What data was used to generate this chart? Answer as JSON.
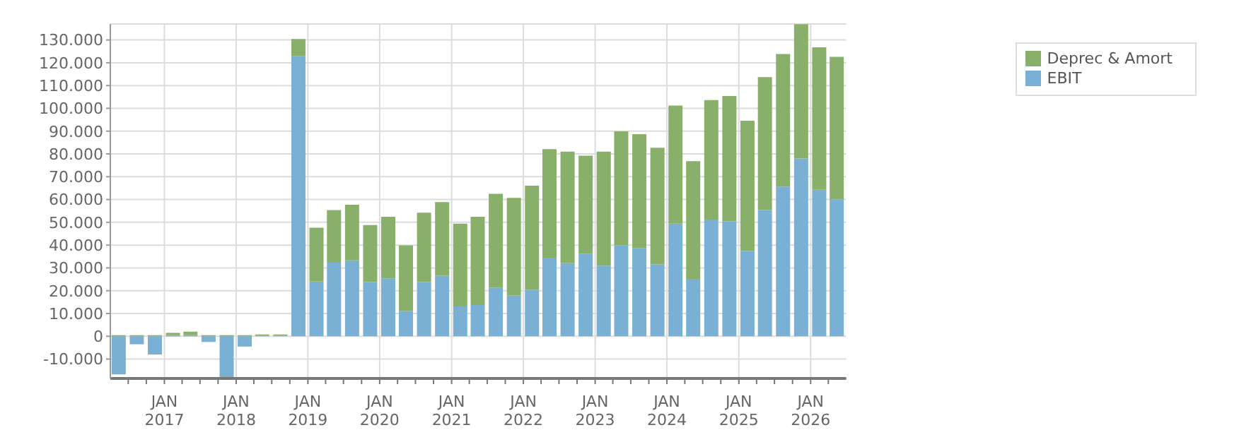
{
  "chart_data": {
    "type": "bar",
    "stacked": true,
    "x": [
      "2016-05-15",
      "2016-08-15",
      "2016-11-15",
      "2017-02-15",
      "2017-05-15",
      "2017-08-15",
      "2017-11-15",
      "2018-02-15",
      "2018-05-15",
      "2018-08-15",
      "2018-11-15",
      "2019-02-15",
      "2019-05-15",
      "2019-08-15",
      "2019-11-15",
      "2020-02-15",
      "2020-05-15",
      "2020-08-15",
      "2020-11-15",
      "2021-02-15",
      "2021-05-15",
      "2021-08-15",
      "2021-11-15",
      "2022-02-15",
      "2022-05-15",
      "2022-08-15",
      "2022-11-15",
      "2023-02-15",
      "2023-05-15",
      "2023-08-15",
      "2023-11-15",
      "2024-02-15",
      "2024-05-15",
      "2024-08-15",
      "2024-11-15",
      "2025-02-15",
      "2025-05-15",
      "2025-08-15",
      "2025-11-15",
      "2026-02-15",
      "2026-05-15"
    ],
    "series": [
      {
        "name": "EBIT",
        "color": "#7ab0d4",
        "values": [
          -16700,
          -3500,
          -8000,
          500,
          500,
          -2500,
          -18500,
          -4500,
          300,
          300,
          123000,
          24000,
          32300,
          33300,
          23800,
          25400,
          11100,
          23800,
          26600,
          13100,
          13700,
          21400,
          17900,
          20400,
          34500,
          32100,
          36100,
          31000,
          39900,
          38700,
          31500,
          49400,
          25200,
          51200,
          50400,
          37500,
          55400,
          65700,
          78000,
          64300,
          60100
        ]
      },
      {
        "name": "Deprec & Amort",
        "color": "#88b06a",
        "values": [
          500,
          500,
          500,
          1000,
          1500,
          500,
          500,
          500,
          500,
          500,
          7400,
          23600,
          23100,
          24400,
          25000,
          27000,
          28800,
          30400,
          32300,
          36300,
          38700,
          41100,
          42800,
          45700,
          47600,
          48900,
          43100,
          50000,
          50000,
          50000,
          51200,
          51800,
          51600,
          52400,
          55000,
          57100,
          58300,
          58100,
          58900,
          62500,
          62500
        ]
      }
    ],
    "xlim": [
      "2016-04-01",
      "2026-07-01"
    ],
    "xticks": [
      {
        "value": "2016-07-01",
        "label": null
      },
      {
        "value": "2016-10-01",
        "label": null
      },
      {
        "value": "2017-01-01",
        "label": "JAN 2017"
      },
      {
        "value": "2017-04-01",
        "label": null
      },
      {
        "value": "2017-07-01",
        "label": null
      },
      {
        "value": "2017-10-01",
        "label": null
      },
      {
        "value": "2018-01-01",
        "label": "JAN 2018"
      },
      {
        "value": "2018-04-01",
        "label": null
      },
      {
        "value": "2018-07-01",
        "label": null
      },
      {
        "value": "2018-10-01",
        "label": null
      },
      {
        "value": "2019-01-01",
        "label": "JAN 2019"
      },
      {
        "value": "2019-04-01",
        "label": null
      },
      {
        "value": "2019-07-01",
        "label": null
      },
      {
        "value": "2019-10-01",
        "label": null
      },
      {
        "value": "2020-01-01",
        "label": "JAN 2020"
      },
      {
        "value": "2020-04-01",
        "label": null
      },
      {
        "value": "2020-07-01",
        "label": null
      },
      {
        "value": "2020-10-01",
        "label": null
      },
      {
        "value": "2021-01-01",
        "label": "JAN 2021"
      },
      {
        "value": "2021-04-01",
        "label": null
      },
      {
        "value": "2021-07-01",
        "label": null
      },
      {
        "value": "2021-10-01",
        "label": null
      },
      {
        "value": "2022-01-01",
        "label": "JAN 2022"
      },
      {
        "value": "2022-04-01",
        "label": null
      },
      {
        "value": "2022-07-01",
        "label": null
      },
      {
        "value": "2022-10-01",
        "label": null
      },
      {
        "value": "2023-01-01",
        "label": "JAN 2023"
      },
      {
        "value": "2023-04-01",
        "label": null
      },
      {
        "value": "2023-07-01",
        "label": null
      },
      {
        "value": "2023-10-01",
        "label": null
      },
      {
        "value": "2024-01-01",
        "label": "JAN 2024"
      },
      {
        "value": "2024-04-01",
        "label": null
      },
      {
        "value": "2024-07-01",
        "label": null
      },
      {
        "value": "2024-10-01",
        "label": null
      },
      {
        "value": "2025-01-01",
        "label": "JAN 2025"
      },
      {
        "value": "2025-04-01",
        "label": null
      },
      {
        "value": "2025-07-01",
        "label": null
      },
      {
        "value": "2025-10-01",
        "label": null
      },
      {
        "value": "2026-01-01",
        "label": "JAN 2026"
      },
      {
        "value": "2026-04-01",
        "label": null
      }
    ],
    "ylim": [
      -18500,
      137000
    ],
    "yticks": [
      {
        "value": -10000,
        "label": "-10.000"
      },
      0,
      {
        "value": 10000,
        "label": "10.000"
      },
      {
        "value": 20000,
        "label": "20.000"
      },
      {
        "value": 30000,
        "label": "30.000"
      },
      {
        "value": 40000,
        "label": "40.000"
      },
      {
        "value": 50000,
        "label": "50.000"
      },
      {
        "value": 60000,
        "label": "60.000"
      },
      {
        "value": 70000,
        "label": "70.000"
      },
      {
        "value": 80000,
        "label": "80.000"
      },
      {
        "value": 90000,
        "label": "90.000"
      },
      {
        "value": 100000,
        "label": "100.000"
      },
      {
        "value": 110000,
        "label": "110.000"
      },
      {
        "value": 120000,
        "label": "120.000"
      },
      {
        "value": 130000,
        "label": "130.000"
      }
    ],
    "grid": true,
    "legend": "top right"
  }
}
